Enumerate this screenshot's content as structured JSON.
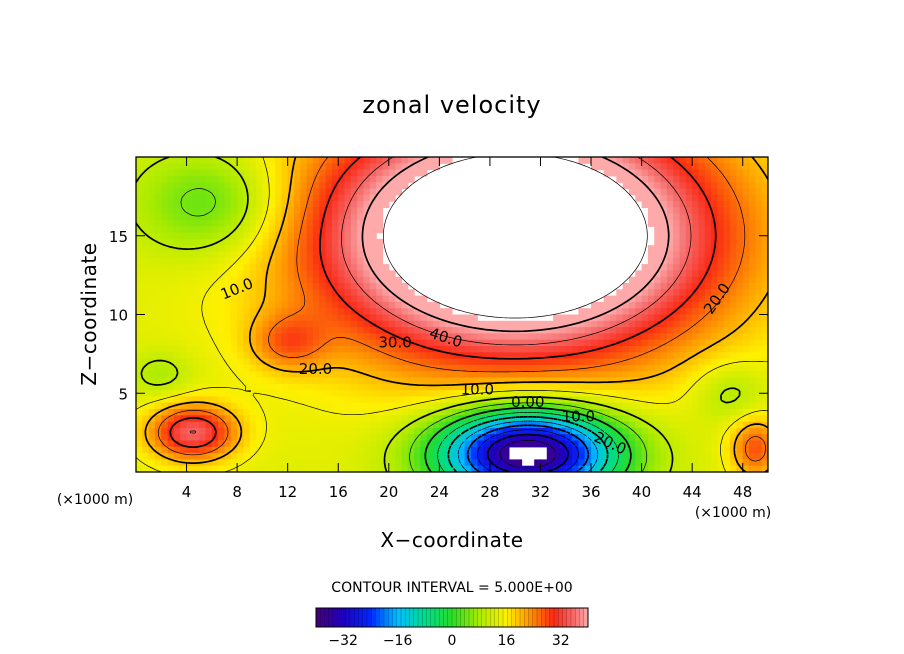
{
  "chart_data": {
    "type": "heatmap",
    "title": "zonal velocity",
    "xlabel": "X−coordinate",
    "ylabel": "Z−coordinate",
    "x_unit": "(×1000 m)",
    "y_unit": "(×1000 m)",
    "xlim": [
      0,
      50
    ],
    "ylim": [
      0,
      20
    ],
    "x_ticks": [
      4,
      8,
      12,
      16,
      20,
      24,
      28,
      32,
      36,
      40,
      44,
      48
    ],
    "y_ticks": [
      5,
      10,
      15
    ],
    "contour_interval_text": "CONTOUR INTERVAL = 5.000E+00",
    "colorbar": {
      "range": [
        -40,
        40
      ],
      "ticks": [
        -32,
        -16,
        0,
        16,
        32
      ],
      "tick_labels": [
        "−32",
        "−16",
        "0",
        "16",
        "32"
      ]
    },
    "contour_labels": [
      {
        "text": "10.0",
        "x": 8.0,
        "z": 11.6,
        "angle": -22
      },
      {
        "text": "20.0",
        "x": 14.2,
        "z": 6.5,
        "angle": 0
      },
      {
        "text": "30.0",
        "x": 20.5,
        "z": 8.2,
        "angle": 0
      },
      {
        "text": "40.0",
        "x": 24.5,
        "z": 8.5,
        "angle": 18
      },
      {
        "text": "10.0",
        "x": 27.0,
        "z": 5.2,
        "angle": 0
      },
      {
        "text": "0.00",
        "x": 31.0,
        "z": 4.4,
        "angle": 0
      },
      {
        "text": "10.0",
        "x": 35.0,
        "z": 3.5,
        "angle": 0
      },
      {
        "text": "20.0",
        "x": 37.5,
        "z": 1.8,
        "angle": 25
      },
      {
        "text": "20.0",
        "x": 46.0,
        "z": 11.0,
        "angle": -55
      }
    ],
    "features": [
      {
        "type": "jet_max",
        "x_range": [
          18,
          44
        ],
        "z_range": [
          8,
          20
        ],
        "value_min": 40
      },
      {
        "type": "reverse_flow_min",
        "x_range": [
          22,
          42
        ],
        "z_range": [
          0,
          4.5
        ],
        "value_min": -35
      },
      {
        "type": "low_level_max",
        "x": 4.5,
        "z": 2.5,
        "value": 30
      },
      {
        "type": "upper_left_min",
        "x": 6,
        "z": 17,
        "value": 2
      }
    ]
  }
}
